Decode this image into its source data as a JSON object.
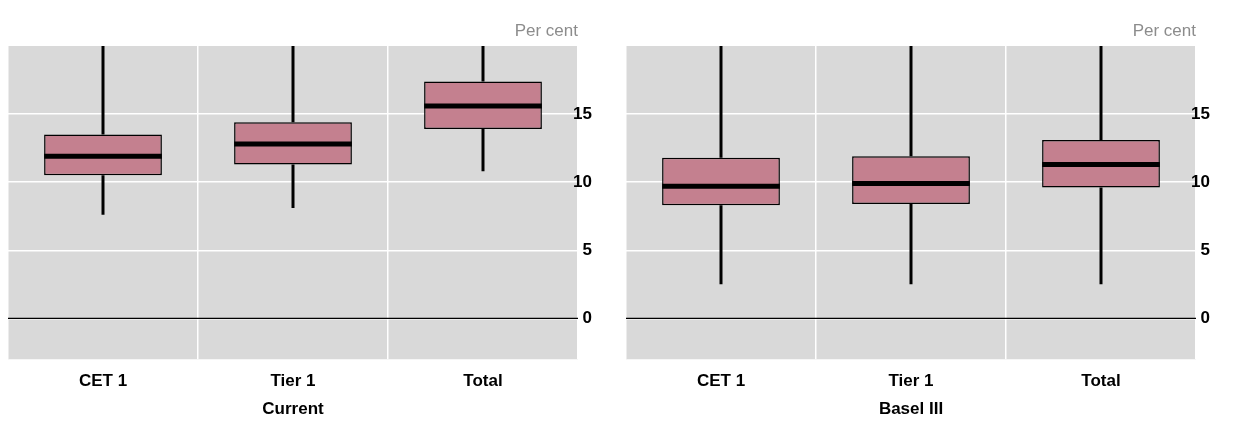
{
  "chart_data": [
    {
      "type": "box",
      "xlabel": "Current",
      "ylabel": "Per cent",
      "categories": [
        "CET 1",
        "Tier 1",
        "Total"
      ],
      "series": [
        {
          "color": "#c4808f",
          "boxes": [
            {
              "low": 7.6,
              "q1": 10.5,
              "median": 11.9,
              "q3": 13.5,
              "high": 20
            },
            {
              "low": 8.1,
              "q1": 11.3,
              "median": 12.8,
              "q3": 14.4,
              "high": 20
            },
            {
              "low": 10.8,
              "q1": 13.9,
              "median": 15.6,
              "q3": 17.4,
              "high": 20
            }
          ]
        }
      ],
      "ylim": [
        -3,
        20
      ],
      "yticks": [
        0,
        5,
        10,
        15
      ],
      "grid": true,
      "legend": false,
      "ref_lines": [
        {
          "axis": "y",
          "value": 0,
          "color": "#000000"
        }
      ]
    },
    {
      "type": "box",
      "xlabel": "Basel III",
      "ylabel": "Per cent",
      "categories": [
        "CET 1",
        "Tier 1",
        "Total"
      ],
      "series": [
        {
          "color": "#c4808f",
          "boxes": [
            {
              "low": 2.5,
              "q1": 8.3,
              "median": 9.7,
              "q3": 11.8,
              "high": 20
            },
            {
              "low": 2.5,
              "q1": 8.4,
              "median": 9.9,
              "q3": 11.9,
              "high": 20
            },
            {
              "low": 2.5,
              "q1": 9.6,
              "median": 11.3,
              "q3": 13.1,
              "high": 20
            }
          ]
        }
      ],
      "ylim": [
        -3,
        20
      ],
      "yticks": [
        0,
        5,
        10,
        15
      ],
      "grid": true,
      "legend": false,
      "ref_lines": [
        {
          "axis": "y",
          "value": 0,
          "color": "#000000"
        }
      ]
    }
  ]
}
